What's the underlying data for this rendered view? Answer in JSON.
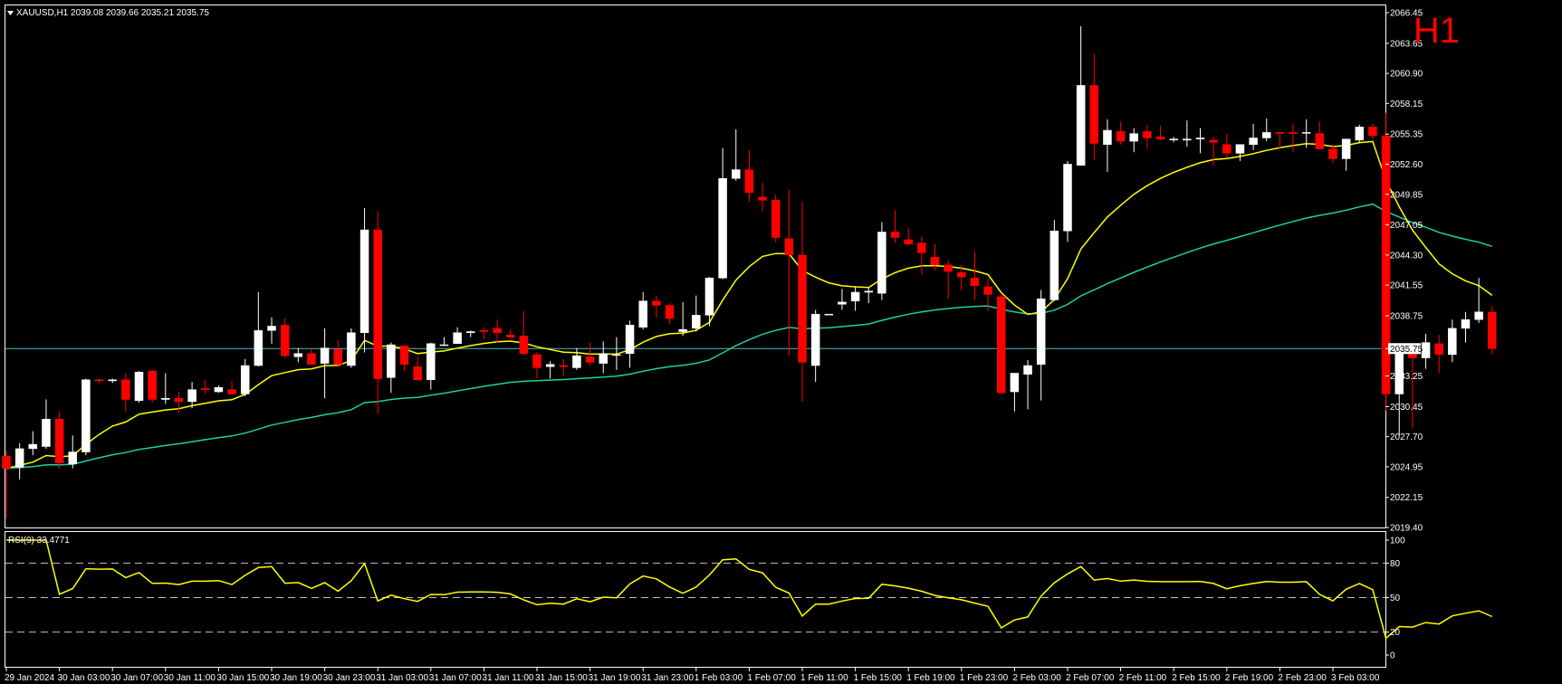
{
  "header": {
    "symbol_line": "XAUUSD,H1  2039.08 2039.66 2035.21 2035.75",
    "timeframe_badge": "H1",
    "rsi_label": "RSI(9) 33.4771",
    "current_price_tag": "2035.75"
  },
  "colors": {
    "background": "#000000",
    "frame": "#ffffff",
    "bull_candle": "#ffffff",
    "bear_candle": "#ff0000",
    "fast_ma": "#ffff00",
    "slow_ma": "#20d0a0",
    "rsi_line": "#ffff00",
    "price_line": "#40c0c0",
    "level_lines": "#c0c0c0",
    "badge": "#ff0000"
  },
  "chart_data": {
    "type": "candlestick",
    "price_axis_ticks": [
      "2066.45",
      "2063.65",
      "2060.90",
      "2058.15",
      "2055.35",
      "2052.60",
      "2049.85",
      "2047.05",
      "2044.30",
      "2041.55",
      "2038.75",
      "2035.75",
      "2033.25",
      "2030.45",
      "2027.70",
      "2024.95",
      "2022.15",
      "2019.40"
    ],
    "price_range": [
      2019.4,
      2066.45
    ],
    "time_axis_labels": [
      "29 Jan 2024",
      "30 Jan 03:00",
      "30 Jan 07:00",
      "30 Jan 11:00",
      "30 Jan 15:00",
      "30 Jan 19:00",
      "30 Jan 23:00",
      "31 Jan 03:00",
      "31 Jan 07:00",
      "31 Jan 11:00",
      "31 Jan 15:00",
      "31 Jan 19:00",
      "31 Jan 23:00",
      "1 Feb 03:00",
      "1 Feb 07:00",
      "1 Feb 11:00",
      "1 Feb 15:00",
      "1 Feb 19:00",
      "1 Feb 23:00",
      "2 Feb 03:00",
      "2 Feb 07:00",
      "2 Feb 11:00",
      "2 Feb 15:00",
      "2 Feb 19:00",
      "2 Feb 23:00",
      "3 Feb 03:00"
    ],
    "ohlc": [
      [
        2025.9,
        2026.4,
        2020.2,
        2024.8
      ],
      [
        2024.9,
        2027.1,
        2023.8,
        2026.6
      ],
      [
        2026.6,
        2028.2,
        2026.0,
        2027.0
      ],
      [
        2026.8,
        2031.1,
        2026.6,
        2029.3
      ],
      [
        2029.3,
        2030.0,
        2024.8,
        2025.3
      ],
      [
        2025.2,
        2027.8,
        2024.8,
        2026.3
      ],
      [
        2026.3,
        2033.0,
        2026.0,
        2032.9
      ],
      [
        2032.9,
        2033.0,
        2032.6,
        2032.8
      ],
      [
        2032.8,
        2033.0,
        2032.6,
        2032.9
      ],
      [
        2032.9,
        2033.5,
        2030.0,
        2031.1
      ],
      [
        2031.0,
        2033.7,
        2030.8,
        2033.6
      ],
      [
        2033.7,
        2033.8,
        2030.8,
        2031.1
      ],
      [
        2031.1,
        2033.5,
        2030.7,
        2031.2
      ],
      [
        2031.2,
        2031.8,
        2029.8,
        2030.9
      ],
      [
        2030.9,
        2032.7,
        2030.3,
        2032.0
      ],
      [
        2032.1,
        2032.9,
        2031.6,
        2032.0
      ],
      [
        2031.8,
        2032.4,
        2031.7,
        2032.2
      ],
      [
        2032.0,
        2032.8,
        2031.6,
        2031.6
      ],
      [
        2031.6,
        2034.8,
        2031.4,
        2034.2
      ],
      [
        2034.2,
        2040.9,
        2034.1,
        2037.4
      ],
      [
        2037.4,
        2038.6,
        2036.2,
        2037.8
      ],
      [
        2037.9,
        2038.5,
        2034.9,
        2035.1
      ],
      [
        2035.0,
        2035.8,
        2034.5,
        2035.3
      ],
      [
        2035.3,
        2035.8,
        2034.3,
        2034.3
      ],
      [
        2034.4,
        2037.6,
        2031.2,
        2035.8
      ],
      [
        2035.7,
        2036.5,
        2034.1,
        2034.3
      ],
      [
        2034.2,
        2037.6,
        2034.0,
        2037.2
      ],
      [
        2037.2,
        2048.6,
        2035.4,
        2046.6
      ],
      [
        2046.6,
        2048.3,
        2029.8,
        2033.0
      ],
      [
        2033.1,
        2036.3,
        2031.7,
        2036.1
      ],
      [
        2036.0,
        2036.0,
        2033.7,
        2034.3
      ],
      [
        2034.1,
        2035.0,
        2032.8,
        2032.9
      ],
      [
        2032.9,
        2036.3,
        2032.0,
        2036.2
      ],
      [
        2036.1,
        2036.8,
        2036.0,
        2036.1
      ],
      [
        2036.2,
        2037.7,
        2036.2,
        2037.2
      ],
      [
        2037.2,
        2037.4,
        2036.8,
        2037.3
      ],
      [
        2037.4,
        2037.7,
        2036.6,
        2037.3
      ],
      [
        2037.6,
        2038.4,
        2036.3,
        2037.2
      ],
      [
        2037.0,
        2037.5,
        2036.6,
        2036.8
      ],
      [
        2036.9,
        2039.2,
        2035.1,
        2035.3
      ],
      [
        2035.2,
        2035.4,
        2033.0,
        2034.0
      ],
      [
        2034.1,
        2034.6,
        2033.0,
        2034.3
      ],
      [
        2034.2,
        2034.8,
        2033.2,
        2034.1
      ],
      [
        2034.0,
        2035.8,
        2033.8,
        2035.1
      ],
      [
        2035.0,
        2036.3,
        2034.2,
        2034.5
      ],
      [
        2034.4,
        2036.4,
        2033.5,
        2035.3
      ],
      [
        2035.2,
        2036.8,
        2033.8,
        2035.2
      ],
      [
        2035.3,
        2038.3,
        2034.0,
        2037.9
      ],
      [
        2037.7,
        2040.9,
        2037.5,
        2040.1
      ],
      [
        2040.1,
        2040.6,
        2038.6,
        2039.7
      ],
      [
        2039.7,
        2039.9,
        2038.0,
        2038.5
      ],
      [
        2037.3,
        2040.0,
        2036.9,
        2037.5
      ],
      [
        2037.6,
        2040.6,
        2037.3,
        2038.8
      ],
      [
        2038.8,
        2042.3,
        2037.8,
        2042.2
      ],
      [
        2042.2,
        2054.1,
        2042.1,
        2051.3
      ],
      [
        2051.3,
        2055.8,
        2051.1,
        2052.1
      ],
      [
        2052.1,
        2053.9,
        2049.2,
        2050.0
      ],
      [
        2049.6,
        2050.9,
        2048.3,
        2049.3
      ],
      [
        2049.3,
        2049.8,
        2045.5,
        2045.9
      ],
      [
        2045.8,
        2050.3,
        2035.1,
        2044.3
      ],
      [
        2044.3,
        2049.2,
        2030.9,
        2034.5
      ],
      [
        2034.2,
        2039.3,
        2032.7,
        2038.9
      ],
      [
        2038.9,
        2038.9,
        2038.9,
        2038.9
      ],
      [
        2039.8,
        2041.2,
        2039.3,
        2040.0
      ],
      [
        2040.1,
        2041.4,
        2039.2,
        2040.9
      ],
      [
        2040.9,
        2041.3,
        2039.9,
        2041.0
      ],
      [
        2040.8,
        2047.3,
        2040.2,
        2046.4
      ],
      [
        2046.4,
        2048.4,
        2045.4,
        2045.9
      ],
      [
        2045.7,
        2046.8,
        2045.2,
        2045.3
      ],
      [
        2045.4,
        2046.0,
        2042.5,
        2044.5
      ],
      [
        2044.1,
        2045.3,
        2042.9,
        2043.4
      ],
      [
        2043.4,
        2043.8,
        2040.3,
        2042.8
      ],
      [
        2042.7,
        2043.4,
        2041.1,
        2042.3
      ],
      [
        2042.2,
        2044.6,
        2040.2,
        2041.5
      ],
      [
        2041.4,
        2042.1,
        2039.2,
        2040.7
      ],
      [
        2040.5,
        2040.7,
        2031.6,
        2031.7
      ],
      [
        2031.8,
        2033.5,
        2030.0,
        2033.5
      ],
      [
        2033.4,
        2034.7,
        2030.2,
        2034.2
      ],
      [
        2034.3,
        2041.1,
        2031.0,
        2040.3
      ],
      [
        2040.2,
        2047.5,
        2040.1,
        2046.5
      ],
      [
        2046.5,
        2052.9,
        2045.5,
        2052.6
      ],
      [
        2052.5,
        2065.2,
        2052.5,
        2059.8
      ],
      [
        2059.8,
        2062.7,
        2053.0,
        2054.5
      ],
      [
        2054.4,
        2056.7,
        2051.9,
        2055.7
      ],
      [
        2055.6,
        2056.5,
        2054.4,
        2054.7
      ],
      [
        2054.7,
        2055.9,
        2053.7,
        2055.4
      ],
      [
        2055.6,
        2056.2,
        2054.0,
        2055.0
      ],
      [
        2055.1,
        2056.1,
        2054.8,
        2054.9
      ],
      [
        2054.9,
        2055.1,
        2054.6,
        2054.9
      ],
      [
        2054.8,
        2056.6,
        2054.2,
        2054.9
      ],
      [
        2054.9,
        2055.9,
        2053.6,
        2055.0
      ],
      [
        2054.8,
        2055.1,
        2052.5,
        2054.6
      ],
      [
        2054.4,
        2055.4,
        2053.2,
        2053.6
      ],
      [
        2053.6,
        2054.4,
        2052.9,
        2054.4
      ],
      [
        2054.4,
        2056.3,
        2053.9,
        2055.0
      ],
      [
        2055.0,
        2056.8,
        2054.7,
        2055.5
      ],
      [
        2055.5,
        2055.5,
        2054.0,
        2055.4
      ],
      [
        2055.5,
        2056.3,
        2053.7,
        2055.4
      ],
      [
        2055.5,
        2056.7,
        2054.1,
        2055.5
      ],
      [
        2055.4,
        2056.5,
        2054.4,
        2054.0
      ],
      [
        2054.0,
        2054.4,
        2052.7,
        2053.1
      ],
      [
        2053.1,
        2054.8,
        2052.0,
        2054.9
      ],
      [
        2054.8,
        2056.2,
        2054.5,
        2056.0
      ],
      [
        2056.0,
        2056.3,
        2054.9,
        2055.2
      ],
      [
        2055.2,
        2057.3,
        2030.1,
        2031.6
      ],
      [
        2031.6,
        2035.8,
        2027.8,
        2035.4
      ],
      [
        2035.4,
        2035.9,
        2028.5,
        2034.9
      ],
      [
        2034.9,
        2037.1,
        2033.9,
        2036.3
      ],
      [
        2036.2,
        2037.0,
        2033.5,
        2035.2
      ],
      [
        2035.2,
        2038.4,
        2034.5,
        2037.6
      ],
      [
        2037.6,
        2039.1,
        2036.3,
        2038.4
      ],
      [
        2038.4,
        2042.2,
        2038.1,
        2039.1
      ],
      [
        2039.08,
        2039.66,
        2035.21,
        2035.75
      ]
    ],
    "rsi_ticks": [
      "100",
      "80",
      "50",
      "20",
      "0"
    ],
    "rsi_levels": [
      80,
      50,
      20
    ],
    "rsi_value": 33.4771
  }
}
